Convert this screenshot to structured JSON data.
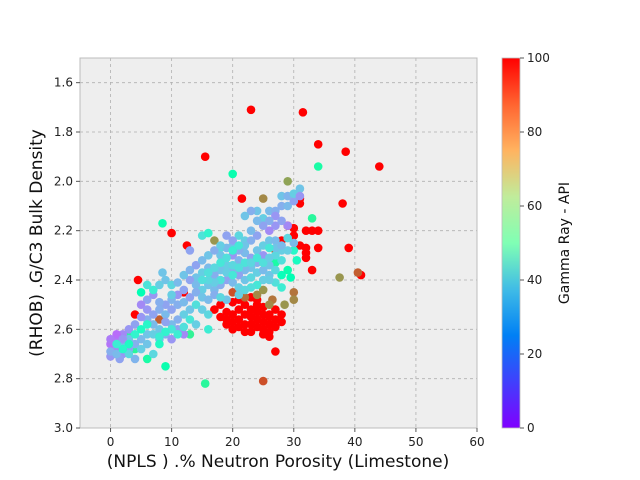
{
  "chart_data": {
    "type": "scatter",
    "xlabel": "(NPLS ) .% Neutron Porosity (Limestone)",
    "ylabel": "(RHOB) .G/C3 Bulk Density",
    "xlim": [
      -5,
      60
    ],
    "ylim": [
      3.0,
      1.5
    ],
    "y_inverted": true,
    "x_ticks": [
      0,
      10,
      20,
      30,
      40,
      50,
      60
    ],
    "x_tick_labels": [
      "0",
      "10",
      "20",
      "30",
      "40",
      "50",
      "60"
    ],
    "y_ticks": [
      1.6,
      1.8,
      2.0,
      2.2,
      2.4,
      2.6,
      2.8,
      3.0
    ],
    "y_tick_labels": [
      "1.6",
      "1.8",
      "2.0",
      "2.2",
      "2.4",
      "2.6",
      "2.8",
      "3.0"
    ],
    "grid": true,
    "colorbar": {
      "label": "Gamma Ray - API",
      "range": [
        0,
        100
      ],
      "ticks": [
        0,
        20,
        40,
        60,
        80,
        100
      ],
      "tick_labels": [
        "0",
        "20",
        "40",
        "60",
        "80",
        "100"
      ],
      "colormap": "rainbow"
    },
    "point_columns": [
      "x",
      "y",
      "gamma_ray"
    ],
    "points": [
      [
        23,
        1.71,
        100
      ],
      [
        31.5,
        1.72,
        100
      ],
      [
        34,
        1.85,
        100
      ],
      [
        38.5,
        1.88,
        100
      ],
      [
        44,
        1.94,
        100
      ],
      [
        15.5,
        1.9,
        100
      ],
      [
        34,
        1.94,
        55
      ],
      [
        20,
        1.97,
        52
      ],
      [
        29,
        2.0,
        78
      ],
      [
        38,
        2.09,
        100
      ],
      [
        31,
        2.07,
        100
      ],
      [
        31,
        2.09,
        100
      ],
      [
        33,
        2.15,
        58
      ],
      [
        21.5,
        2.07,
        100
      ],
      [
        25,
        2.07,
        82
      ],
      [
        10,
        2.21,
        100
      ],
      [
        8.5,
        2.17,
        52
      ],
      [
        39,
        2.27,
        100
      ],
      [
        41,
        2.38,
        100
      ],
      [
        40.5,
        2.37,
        88
      ],
      [
        37.5,
        2.39,
        80
      ],
      [
        30,
        2.45,
        85
      ],
      [
        30,
        2.48,
        82
      ],
      [
        28.5,
        2.5,
        80
      ],
      [
        26.5,
        2.48,
        85
      ],
      [
        26,
        2.54,
        100
      ],
      [
        27,
        2.69,
        100
      ],
      [
        25,
        2.81,
        90
      ],
      [
        15.5,
        2.82,
        58
      ],
      [
        9,
        2.75,
        52
      ],
      [
        13,
        2.62,
        60
      ],
      [
        16,
        2.6,
        38
      ],
      [
        12,
        2.45,
        100
      ],
      [
        4.5,
        2.4,
        100
      ],
      [
        5,
        2.45,
        50
      ],
      [
        4,
        2.54,
        100
      ],
      [
        8,
        2.56,
        88
      ],
      [
        3,
        2.62,
        58
      ],
      [
        6,
        2.72,
        55
      ],
      [
        4,
        2.68,
        58
      ],
      [
        33,
        2.36,
        100
      ],
      [
        34,
        2.27,
        100
      ],
      [
        32,
        2.29,
        100
      ],
      [
        32,
        2.31,
        100
      ],
      [
        31,
        2.26,
        100
      ],
      [
        30,
        2.22,
        100
      ],
      [
        29,
        2.18,
        100
      ],
      [
        28,
        2.24,
        100
      ],
      [
        27,
        2.28,
        88
      ],
      [
        30,
        2.19,
        100
      ],
      [
        32,
        2.2,
        100
      ],
      [
        33,
        2.2,
        100
      ],
      [
        34,
        2.2,
        100
      ],
      [
        32,
        2.27,
        100
      ],
      [
        12.5,
        2.26,
        100
      ],
      [
        17,
        2.24,
        80
      ],
      [
        15,
        2.22,
        35
      ],
      [
        13,
        2.28,
        22
      ],
      [
        18,
        2.27,
        33
      ],
      [
        16,
        2.21,
        40
      ],
      [
        17,
        2.52,
        100
      ],
      [
        18,
        2.55,
        100
      ],
      [
        19,
        2.56,
        100
      ],
      [
        20,
        2.54,
        100
      ],
      [
        20,
        2.57,
        100
      ],
      [
        21,
        2.52,
        100
      ],
      [
        21,
        2.56,
        100
      ],
      [
        22,
        2.5,
        100
      ],
      [
        22,
        2.54,
        100
      ],
      [
        22,
        2.58,
        100
      ],
      [
        23,
        2.52,
        100
      ],
      [
        23,
        2.55,
        100
      ],
      [
        23,
        2.58,
        100
      ],
      [
        23,
        2.47,
        100
      ],
      [
        24,
        2.5,
        100
      ],
      [
        24,
        2.53,
        100
      ],
      [
        24,
        2.56,
        100
      ],
      [
        24,
        2.59,
        100
      ],
      [
        25,
        2.51,
        100
      ],
      [
        25,
        2.54,
        100
      ],
      [
        25,
        2.57,
        100
      ],
      [
        25,
        2.6,
        100
      ],
      [
        26,
        2.55,
        100
      ],
      [
        26,
        2.58,
        100
      ],
      [
        26,
        2.61,
        100
      ],
      [
        27,
        2.56,
        100
      ],
      [
        27,
        2.59,
        100
      ],
      [
        28,
        2.57,
        100
      ],
      [
        21,
        2.59,
        100
      ],
      [
        22,
        2.61,
        100
      ],
      [
        19,
        2.53,
        100
      ],
      [
        18,
        2.5,
        100
      ],
      [
        20,
        2.49,
        100
      ],
      [
        21,
        2.48,
        100
      ],
      [
        24,
        2.48,
        100
      ],
      [
        27,
        2.52,
        100
      ],
      [
        28,
        2.54,
        100
      ],
      [
        22,
        2.47,
        86
      ],
      [
        24,
        2.46,
        82
      ],
      [
        25,
        2.44,
        80
      ],
      [
        20,
        2.45,
        90
      ],
      [
        26,
        2.5,
        82
      ],
      [
        19,
        2.58,
        100
      ],
      [
        23,
        2.61,
        100
      ],
      [
        25,
        2.62,
        100
      ],
      [
        26,
        2.63,
        100
      ],
      [
        20,
        2.6,
        100
      ],
      [
        28,
        2.38,
        48
      ],
      [
        29,
        2.36,
        52
      ],
      [
        27,
        2.33,
        55
      ],
      [
        29.5,
        2.39,
        50
      ],
      [
        30.5,
        2.32,
        45
      ],
      [
        30,
        2.28,
        42
      ],
      [
        25,
        2.15,
        30
      ],
      [
        24,
        2.12,
        28
      ],
      [
        26,
        2.12,
        26
      ],
      [
        27,
        2.12,
        24
      ],
      [
        28,
        2.1,
        24
      ],
      [
        29,
        2.1,
        26
      ],
      [
        30,
        2.08,
        22
      ],
      [
        28,
        2.06,
        28
      ],
      [
        29,
        2.06,
        25
      ],
      [
        30,
        2.05,
        30
      ],
      [
        31,
        2.03,
        28
      ],
      [
        27,
        2.18,
        20
      ],
      [
        26,
        2.2,
        18
      ],
      [
        24,
        2.22,
        22
      ],
      [
        23,
        2.2,
        26
      ],
      [
        22,
        2.24,
        30
      ],
      [
        21,
        2.22,
        32
      ],
      [
        20,
        2.26,
        28
      ],
      [
        19,
        2.22,
        22
      ],
      [
        19,
        2.27,
        26
      ],
      [
        18,
        2.3,
        28
      ],
      [
        20,
        2.3,
        20
      ],
      [
        21,
        2.32,
        25
      ],
      [
        22,
        2.29,
        26
      ],
      [
        23,
        2.31,
        22
      ],
      [
        24,
        2.28,
        28
      ],
      [
        25,
        2.26,
        30
      ],
      [
        26,
        2.24,
        28
      ],
      [
        27,
        2.24,
        26
      ],
      [
        25,
        2.3,
        20
      ],
      [
        24,
        2.33,
        24
      ],
      [
        23,
        2.35,
        28
      ],
      [
        22,
        2.36,
        26
      ],
      [
        21,
        2.38,
        22
      ],
      [
        20,
        2.36,
        25
      ],
      [
        19,
        2.34,
        30
      ],
      [
        18,
        2.36,
        28
      ],
      [
        17,
        2.38,
        24
      ],
      [
        16,
        2.35,
        26
      ],
      [
        15,
        2.37,
        30
      ],
      [
        14,
        2.39,
        28
      ],
      [
        13,
        2.4,
        22
      ],
      [
        14,
        2.42,
        26
      ],
      [
        15,
        2.44,
        30
      ],
      [
        16,
        2.42,
        28
      ],
      [
        17,
        2.44,
        26
      ],
      [
        18,
        2.42,
        24
      ],
      [
        19,
        2.4,
        22
      ],
      [
        20,
        2.41,
        26
      ],
      [
        21,
        2.43,
        30
      ],
      [
        22,
        2.4,
        28
      ],
      [
        23,
        2.39,
        32
      ],
      [
        24,
        2.37,
        30
      ],
      [
        25,
        2.36,
        26
      ],
      [
        26,
        2.34,
        28
      ],
      [
        27,
        2.3,
        32
      ],
      [
        28,
        2.28,
        30
      ],
      [
        26,
        2.38,
        28
      ],
      [
        25,
        2.4,
        30
      ],
      [
        27,
        2.41,
        34
      ],
      [
        28,
        2.43,
        38
      ],
      [
        12,
        2.44,
        22
      ],
      [
        11,
        2.46,
        20
      ],
      [
        10,
        2.48,
        25
      ],
      [
        9,
        2.5,
        22
      ],
      [
        8,
        2.49,
        24
      ],
      [
        7,
        2.46,
        20
      ],
      [
        6,
        2.48,
        22
      ],
      [
        5,
        2.5,
        18
      ],
      [
        6,
        2.52,
        20
      ],
      [
        7,
        2.54,
        22
      ],
      [
        8,
        2.52,
        24
      ],
      [
        9,
        2.54,
        26
      ],
      [
        10,
        2.52,
        22
      ],
      [
        11,
        2.5,
        24
      ],
      [
        12,
        2.49,
        26
      ],
      [
        13,
        2.47,
        22
      ],
      [
        14,
        2.45,
        24
      ],
      [
        15,
        2.47,
        28
      ],
      [
        16,
        2.48,
        26
      ],
      [
        17,
        2.46,
        24
      ],
      [
        13,
        2.52,
        28
      ],
      [
        12,
        2.54,
        30
      ],
      [
        11,
        2.56,
        24
      ],
      [
        10,
        2.58,
        26
      ],
      [
        9,
        2.57,
        22
      ],
      [
        8,
        2.6,
        28
      ],
      [
        7,
        2.58,
        26
      ],
      [
        6,
        2.56,
        24
      ],
      [
        5,
        2.55,
        20
      ],
      [
        4,
        2.58,
        22
      ],
      [
        3,
        2.6,
        20
      ],
      [
        2,
        2.62,
        18
      ],
      [
        1,
        2.64,
        16
      ],
      [
        0,
        2.66,
        15
      ],
      [
        1,
        2.68,
        18
      ],
      [
        2,
        2.7,
        20
      ],
      [
        3,
        2.68,
        22
      ],
      [
        4,
        2.66,
        24
      ],
      [
        5,
        2.64,
        26
      ],
      [
        6,
        2.62,
        28
      ],
      [
        7,
        2.62,
        30
      ],
      [
        8,
        2.64,
        26
      ],
      [
        9,
        2.62,
        24
      ],
      [
        10,
        2.64,
        20
      ],
      [
        11,
        2.6,
        22
      ],
      [
        12,
        2.62,
        18
      ],
      [
        0.5,
        2.7,
        18
      ],
      [
        1.5,
        2.72,
        22
      ],
      [
        0,
        2.71,
        20
      ],
      [
        2,
        2.66,
        30
      ],
      [
        3,
        2.64,
        28
      ],
      [
        5,
        2.68,
        30
      ],
      [
        6,
        2.66,
        28
      ],
      [
        7,
        2.7,
        32
      ],
      [
        4,
        2.72,
        25
      ],
      [
        1,
        2.62,
        14
      ],
      [
        0,
        2.64,
        16
      ],
      [
        2,
        2.64,
        20
      ],
      [
        0,
        2.69,
        24
      ],
      [
        1,
        2.7,
        26
      ],
      [
        3,
        2.7,
        32
      ],
      [
        7,
        2.44,
        38
      ],
      [
        6,
        2.42,
        35
      ],
      [
        8,
        2.42,
        30
      ],
      [
        9,
        2.4,
        28
      ],
      [
        10,
        2.42,
        32
      ],
      [
        11,
        2.41,
        26
      ],
      [
        12,
        2.38,
        28
      ],
      [
        13,
        2.36,
        25
      ],
      [
        14,
        2.34,
        22
      ],
      [
        15,
        2.32,
        26
      ],
      [
        16,
        2.3,
        28
      ],
      [
        17,
        2.28,
        24
      ],
      [
        18,
        2.26,
        30
      ],
      [
        8.5,
        2.37,
        28
      ],
      [
        10,
        2.46,
        30
      ],
      [
        14,
        2.5,
        34
      ],
      [
        15,
        2.52,
        30
      ],
      [
        16,
        2.54,
        32
      ],
      [
        13,
        2.56,
        36
      ],
      [
        14,
        2.58,
        30
      ],
      [
        12,
        2.59,
        34
      ],
      [
        11,
        2.62,
        38
      ],
      [
        10,
        2.6,
        36
      ],
      [
        9,
        2.61,
        40
      ],
      [
        8,
        2.63,
        38
      ],
      [
        4,
        2.62,
        40
      ],
      [
        5,
        2.6,
        44
      ],
      [
        6,
        2.58,
        42
      ],
      [
        3,
        2.66,
        44
      ],
      [
        2,
        2.68,
        42
      ],
      [
        1,
        2.66,
        38
      ],
      [
        8,
        2.66,
        44
      ],
      [
        29,
        2.18,
        18
      ],
      [
        28,
        2.16,
        22
      ],
      [
        27,
        2.14,
        20
      ],
      [
        26,
        2.16,
        24
      ],
      [
        25,
        2.18,
        22
      ],
      [
        24,
        2.16,
        26
      ],
      [
        23,
        2.24,
        24
      ],
      [
        22,
        2.26,
        28
      ],
      [
        21,
        2.28,
        24
      ],
      [
        20,
        2.24,
        22
      ],
      [
        31,
        2.06,
        20
      ],
      [
        23,
        2.12,
        24
      ],
      [
        22,
        2.14,
        28
      ],
      [
        30,
        2.25,
        26
      ],
      [
        29,
        2.28,
        30
      ],
      [
        28,
        2.32,
        34
      ],
      [
        27,
        2.36,
        32
      ],
      [
        26,
        2.4,
        30
      ],
      [
        24,
        2.42,
        36
      ],
      [
        23,
        2.43,
        34
      ],
      [
        22,
        2.44,
        32
      ],
      [
        21,
        2.46,
        30
      ],
      [
        19,
        2.48,
        28
      ],
      [
        18,
        2.47,
        32
      ],
      [
        20,
        2.34,
        32
      ],
      [
        19,
        2.37,
        30
      ],
      [
        18,
        2.4,
        34
      ],
      [
        17,
        2.41,
        30
      ],
      [
        16,
        2.4,
        32
      ],
      [
        15,
        2.4,
        34
      ],
      [
        22,
        2.33,
        35
      ],
      [
        23,
        2.33,
        32
      ],
      [
        24,
        2.31,
        36
      ],
      [
        25,
        2.33,
        34
      ],
      [
        26,
        2.31,
        30
      ],
      [
        27,
        2.27,
        28
      ],
      [
        28,
        2.26,
        26
      ],
      [
        26,
        2.27,
        36
      ],
      [
        29,
        2.23,
        32
      ],
      [
        21,
        2.35,
        34
      ],
      [
        20,
        2.38,
        36
      ],
      [
        18,
        2.33,
        36
      ],
      [
        17,
        2.35,
        32
      ],
      [
        16,
        2.37,
        34
      ],
      [
        19,
        2.31,
        34
      ],
      [
        21,
        2.26,
        36
      ],
      [
        20,
        2.28,
        38
      ]
    ]
  }
}
